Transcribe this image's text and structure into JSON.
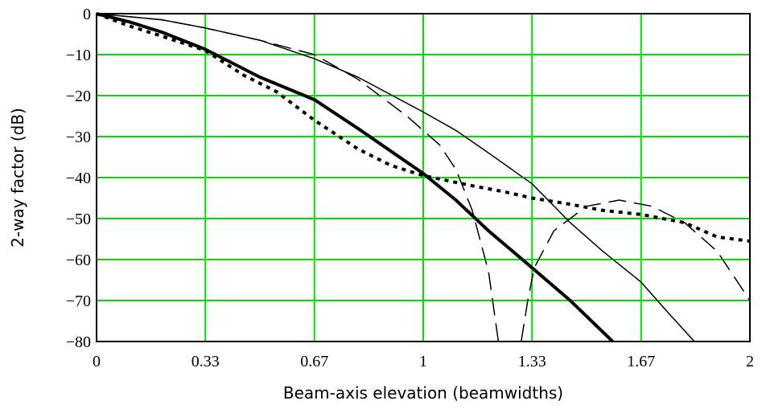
{
  "chart_data": {
    "type": "line",
    "xlabel": "Beam-axis elevation (beamwidths)",
    "ylabel": "2-way factor (dB)",
    "xlim": [
      0,
      2
    ],
    "ylim": [
      -80,
      0
    ],
    "x_ticks": [
      0,
      0.333,
      0.667,
      1,
      1.333,
      1.667,
      2
    ],
    "x_tick_labels": [
      "0",
      "0.33",
      "0.67",
      "1",
      "1.33",
      "1.67",
      "2"
    ],
    "y_ticks": [
      0,
      -10,
      -20,
      -30,
      -40,
      -50,
      -60,
      -70,
      -80
    ],
    "y_tick_labels": [
      "0",
      "−10",
      "−20",
      "−30",
      "−40",
      "−50",
      "−60",
      "−70",
      "−80"
    ],
    "grid": true,
    "grid_color": "#00e000",
    "series": [
      {
        "style": "solid-thick",
        "points": [
          [
            0,
            0
          ],
          [
            0.1,
            -2
          ],
          [
            0.2,
            -4.5
          ],
          [
            0.333,
            -8.7
          ],
          [
            0.5,
            -15.5
          ],
          [
            0.667,
            -21
          ],
          [
            0.8,
            -28
          ],
          [
            1,
            -39
          ],
          [
            1.1,
            -45.5
          ],
          [
            1.2,
            -53
          ],
          [
            1.333,
            -62
          ],
          [
            1.45,
            -70
          ],
          [
            1.58,
            -80
          ]
        ]
      },
      {
        "style": "solid-thin",
        "points": [
          [
            0,
            0
          ],
          [
            0.2,
            -1.5
          ],
          [
            0.333,
            -3.5
          ],
          [
            0.5,
            -6.5
          ],
          [
            0.667,
            -11
          ],
          [
            0.8,
            -15.5
          ],
          [
            1,
            -24
          ],
          [
            1.1,
            -28.5
          ],
          [
            1.2,
            -34
          ],
          [
            1.333,
            -41.5
          ],
          [
            1.45,
            -51
          ],
          [
            1.55,
            -58
          ],
          [
            1.667,
            -65.5
          ],
          [
            1.75,
            -73
          ],
          [
            1.83,
            -80
          ]
        ]
      },
      {
        "style": "dashed",
        "points": [
          [
            0,
            0
          ],
          [
            0.2,
            -1.5
          ],
          [
            0.333,
            -3.5
          ],
          [
            0.5,
            -6.5
          ],
          [
            0.667,
            -10
          ],
          [
            0.8,
            -16
          ],
          [
            0.95,
            -25
          ],
          [
            1.05,
            -32
          ],
          [
            1.1,
            -38
          ],
          [
            1.15,
            -48
          ],
          [
            1.2,
            -63
          ],
          [
            1.23,
            -80
          ],
          null,
          [
            1.3,
            -80
          ],
          [
            1.32,
            -70
          ],
          [
            1.34,
            -62
          ],
          [
            1.4,
            -53
          ],
          [
            1.5,
            -47
          ],
          [
            1.6,
            -45.5
          ],
          [
            1.7,
            -47
          ],
          [
            1.8,
            -51
          ],
          [
            1.9,
            -58
          ],
          [
            2,
            -70
          ]
        ]
      },
      {
        "style": "dotted",
        "points": [
          [
            0,
            0
          ],
          [
            0.1,
            -3
          ],
          [
            0.2,
            -5.5
          ],
          [
            0.333,
            -9
          ],
          [
            0.45,
            -15
          ],
          [
            0.55,
            -19
          ],
          [
            0.667,
            -26
          ],
          [
            0.8,
            -33
          ],
          [
            0.9,
            -37
          ],
          [
            1,
            -39.5
          ],
          [
            1.15,
            -42
          ],
          [
            1.25,
            -43.5
          ],
          [
            1.333,
            -45
          ],
          [
            1.45,
            -46.5
          ],
          [
            1.55,
            -48
          ],
          [
            1.667,
            -49
          ],
          [
            1.8,
            -51
          ],
          [
            1.9,
            -54.5
          ],
          [
            2,
            -55.5
          ]
        ]
      }
    ]
  }
}
